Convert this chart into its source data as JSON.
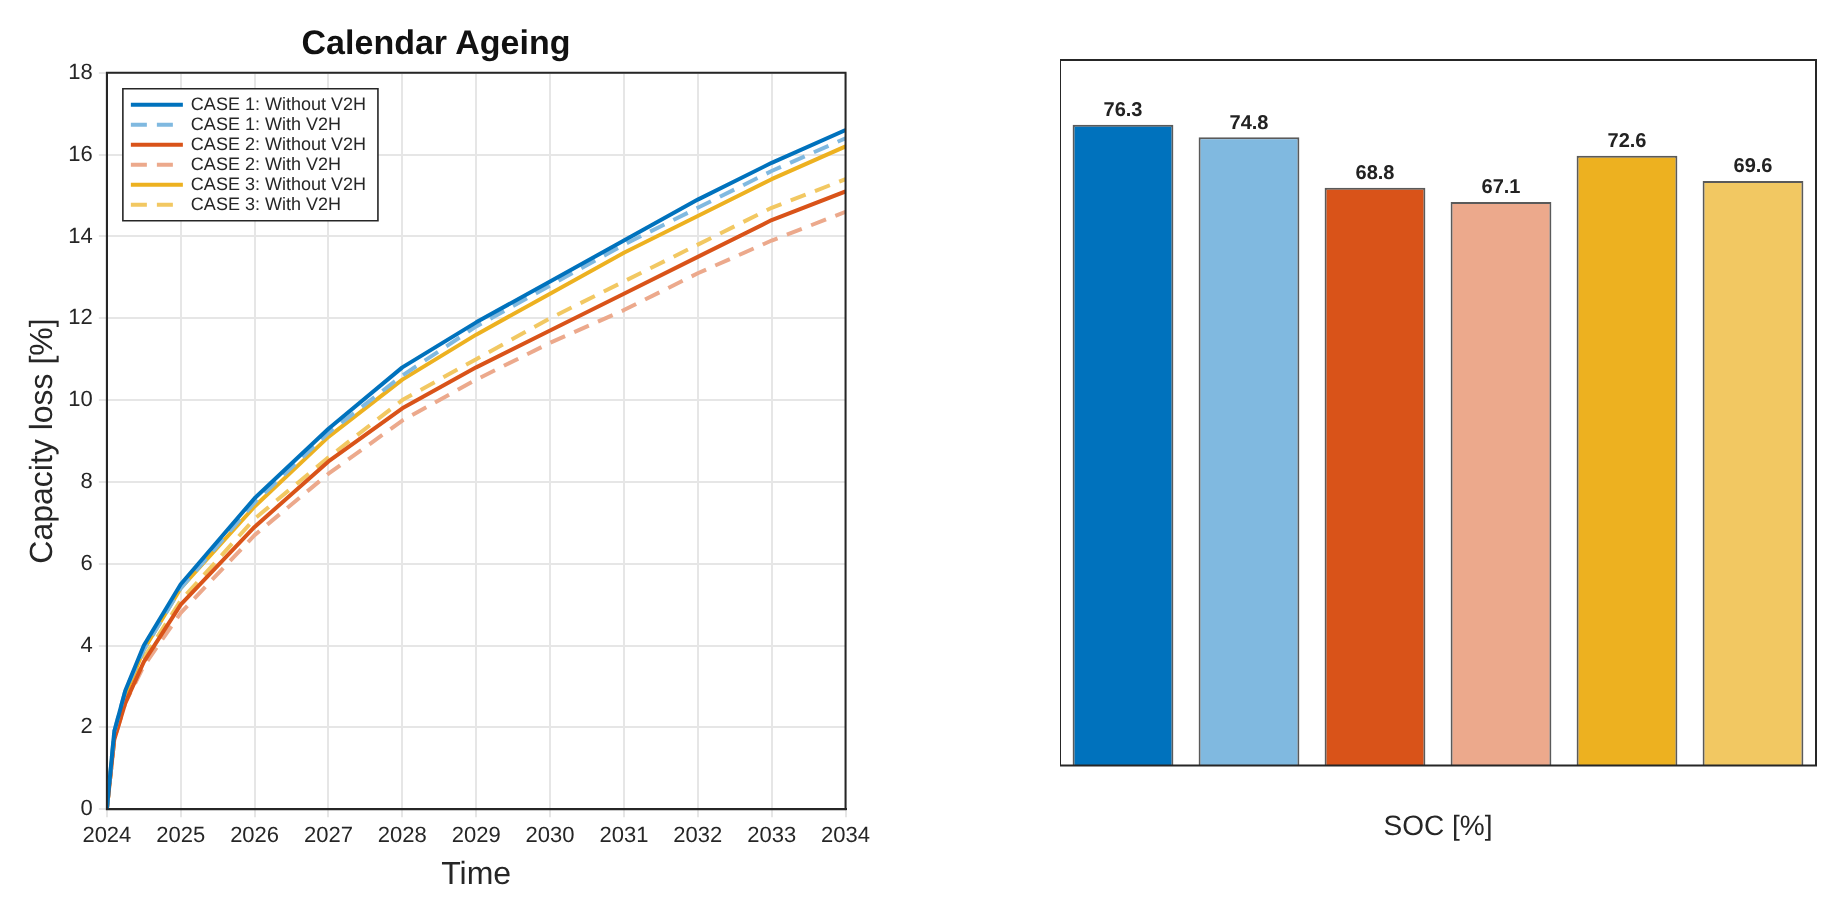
{
  "chart_data": [
    {
      "type": "line",
      "title": "Calendar Ageing",
      "xlabel": "Time",
      "ylabel": "Capacity loss [%]",
      "x": [
        2024,
        2024.1,
        2024.25,
        2024.5,
        2025,
        2026,
        2027,
        2028,
        2029,
        2030,
        2031,
        2032,
        2033,
        2034
      ],
      "series": [
        {
          "name": "CASE 1: Without V2H",
          "color": "#0072bd",
          "line_style": "solid",
          "values": [
            0,
            1.9,
            2.9,
            4.0,
            5.5,
            7.6,
            9.3,
            10.8,
            11.9,
            12.9,
            13.9,
            14.9,
            15.8,
            16.6
          ]
        },
        {
          "name": "CASE 1: With V2H",
          "color": "#80b9e0",
          "line_style": "dashed",
          "values": [
            0,
            1.9,
            2.9,
            3.9,
            5.4,
            7.5,
            9.2,
            10.6,
            11.8,
            12.8,
            13.8,
            14.7,
            15.6,
            16.4
          ]
        },
        {
          "name": "CASE 2: Without V2H",
          "color": "#d95319",
          "line_style": "solid",
          "values": [
            0,
            1.7,
            2.6,
            3.6,
            5.0,
            6.9,
            8.5,
            9.8,
            10.8,
            11.7,
            12.6,
            13.5,
            14.4,
            15.1
          ]
        },
        {
          "name": "CASE 2: With V2H",
          "color": "#eca98c",
          "line_style": "dashed",
          "values": [
            0,
            1.7,
            2.6,
            3.5,
            4.8,
            6.7,
            8.2,
            9.5,
            10.5,
            11.4,
            12.2,
            13.1,
            13.9,
            14.6
          ]
        },
        {
          "name": "CASE 3: Without V2H",
          "color": "#edb120",
          "line_style": "solid",
          "values": [
            0,
            1.8,
            2.8,
            3.9,
            5.4,
            7.4,
            9.1,
            10.5,
            11.6,
            12.6,
            13.6,
            14.5,
            15.4,
            16.2
          ]
        },
        {
          "name": "CASE 3: With V2H",
          "color": "#f2c862",
          "line_style": "dashed",
          "values": [
            0,
            1.7,
            2.7,
            3.7,
            5.1,
            7.1,
            8.6,
            10.0,
            11.0,
            12.0,
            12.9,
            13.8,
            14.7,
            15.4
          ]
        }
      ],
      "xlim": [
        2024,
        2034
      ],
      "xticks": [
        2024,
        2025,
        2026,
        2027,
        2028,
        2029,
        2030,
        2031,
        2032,
        2033,
        2034
      ],
      "ylim": [
        0,
        18
      ],
      "yticks": [
        0,
        2,
        4,
        6,
        8,
        10,
        12,
        14,
        16,
        18
      ],
      "grid": true,
      "legend": "top left",
      "marker": "none"
    },
    {
      "type": "bar",
      "xlabel": "SOC [%]",
      "categories": [
        null,
        null,
        null,
        null,
        null,
        null
      ],
      "values": [
        76.3,
        74.8,
        68.8,
        67.1,
        72.6,
        69.6
      ],
      "colors": [
        "#0072bd",
        "#80b9e0",
        "#d95319",
        "#eca98c",
        "#edb120",
        "#f2c862"
      ],
      "ylim": [
        0,
        84
      ],
      "data_labels": true,
      "grid": false,
      "legend": false
    }
  ]
}
